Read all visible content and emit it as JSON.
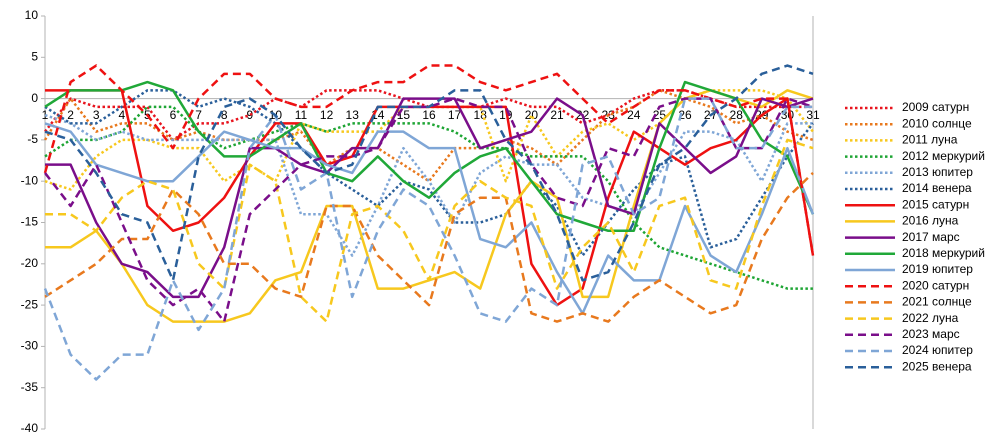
{
  "chart_data": {
    "type": "line",
    "categories": [
      "1",
      "2",
      "3",
      "4",
      "5",
      "6",
      "7",
      "8",
      "9",
      "10",
      "11",
      "12",
      "13",
      "14",
      "15",
      "16",
      "17",
      "18",
      "19",
      "20",
      "21",
      "22",
      "23",
      "24",
      "25",
      "26",
      "27",
      "28",
      "29",
      "30",
      "31"
    ],
    "ylim": [
      -40,
      10
    ],
    "yticks": [
      10,
      5,
      0,
      -5,
      -10,
      -15,
      -20,
      -25,
      -30,
      -35,
      -40
    ],
    "grid": false,
    "series": [
      {
        "name": "2009 сатурн",
        "color": "#e8141e",
        "style": "dotted",
        "values": [
          -4,
          0,
          -1,
          -1,
          -1,
          -5,
          -3,
          -3,
          -2,
          0,
          -1,
          1,
          1,
          1,
          0,
          -1,
          -1,
          -1,
          0,
          -1,
          -1,
          -3,
          -2,
          0,
          1,
          1,
          0,
          -1,
          -1,
          -1,
          -1
        ]
      },
      {
        "name": "2010 солнце",
        "color": "#e8791e",
        "style": "dotted",
        "values": [
          -5,
          0,
          -4,
          -3,
          -3,
          -5,
          -4,
          -5,
          -5,
          -5,
          -4,
          -8,
          -6,
          -6,
          -8,
          -10,
          -6,
          -6,
          -5,
          -6,
          -8,
          -5,
          -2,
          -1,
          1,
          0,
          -1,
          -3,
          -2,
          -4,
          -5
        ]
      },
      {
        "name": "2011 луна",
        "color": "#f7c81e",
        "style": "dotted",
        "values": [
          -10,
          -11,
          -7,
          -5,
          -5,
          -6,
          -6,
          -10,
          -8,
          -10,
          -3,
          -4,
          -4,
          -4,
          -1,
          -1,
          -1,
          -1,
          -10,
          -2,
          -7,
          -4,
          -3,
          -5,
          -3,
          0,
          1,
          1,
          1,
          0,
          -4
        ]
      },
      {
        "name": "2012 меркурий",
        "color": "#1ea534",
        "style": "dotted",
        "values": [
          -7,
          -5,
          -5,
          -4,
          -1,
          -1,
          -4,
          -6,
          -5,
          -4,
          -3,
          -4,
          -3,
          -3,
          -3,
          -3,
          -4,
          -6,
          -6,
          -7,
          -7,
          -7,
          -10,
          -15,
          -18,
          -19,
          -20,
          -21,
          -22,
          -23,
          -23
        ]
      },
      {
        "name": "2013 юпитер",
        "color": "#7fa6d6",
        "style": "dotted",
        "values": [
          -2,
          -3,
          -5,
          -4,
          -5,
          -5,
          -5,
          -5,
          -5,
          -5,
          -14,
          -14,
          -19,
          -13,
          -6,
          -10,
          -15,
          -9,
          -7,
          -8,
          -8,
          -12,
          -13,
          -14,
          -9,
          -4,
          -4,
          -5,
          -10,
          -3,
          -3
        ]
      },
      {
        "name": "2014 венера",
        "color": "#2a5f9a",
        "style": "dotted",
        "values": [
          -1,
          -3,
          -3,
          -1,
          1,
          1,
          -1,
          0,
          -1,
          -3,
          -6,
          -9,
          -11,
          -13,
          -10,
          -11,
          -15,
          -15,
          -14,
          -10,
          -13,
          -19,
          -15,
          -11,
          -8,
          -7,
          -18,
          -17,
          -12,
          -7,
          -3
        ]
      },
      {
        "name": "2015 сатурн",
        "color": "#ee1111",
        "style": "solid",
        "values": [
          1,
          1,
          1,
          1,
          -13,
          -16,
          -15,
          -12,
          -7,
          -3,
          -3,
          -8,
          -7,
          -1,
          -1,
          -1,
          -1,
          -1,
          -1,
          -20,
          -25,
          -23,
          -12,
          -4,
          -6,
          -8,
          -6,
          -5,
          -2,
          0,
          -19
        ]
      },
      {
        "name": "2016 луна",
        "color": "#f7c81e",
        "style": "solid",
        "values": [
          -18,
          -18,
          -16,
          -20,
          -25,
          -27,
          -27,
          -27,
          -26,
          -22,
          -21,
          -13,
          -13,
          -23,
          -23,
          -22,
          -21,
          -23,
          -14,
          -10,
          -12,
          -24,
          -24,
          -13,
          -3,
          0,
          1,
          0,
          -1,
          1,
          0
        ]
      },
      {
        "name": "2017 марс",
        "color": "#7a0e8a",
        "style": "solid",
        "values": [
          -8,
          -8,
          -15,
          -20,
          -21,
          -24,
          -24,
          -18,
          -6,
          -6,
          -8,
          -9,
          -6,
          -6,
          0,
          0,
          0,
          -6,
          -5,
          -4,
          0,
          -2,
          -13,
          -14,
          -3,
          -6,
          -9,
          -7,
          0,
          -1,
          0
        ]
      },
      {
        "name": "2018 меркурий",
        "color": "#20a838",
        "style": "solid",
        "values": [
          -1,
          1,
          1,
          1,
          2,
          1,
          -4,
          -7,
          -7,
          -5,
          -3,
          -9,
          -10,
          -7,
          -10,
          -12,
          -9,
          -7,
          -6,
          -10,
          -14,
          -15,
          -16,
          -16,
          -6,
          2,
          1,
          0,
          -5,
          -7,
          -14
        ]
      },
      {
        "name": "2019 юпитер",
        "color": "#7fa6d6",
        "style": "solid",
        "values": [
          -3,
          -4,
          -8,
          -9,
          -10,
          -10,
          -7,
          -4,
          -5,
          -6,
          -6,
          -8,
          -9,
          -4,
          -4,
          -6,
          -6,
          -17,
          -18,
          -15,
          -21,
          -26,
          -19,
          -22,
          -22,
          -13,
          -19,
          -21,
          -14,
          -6,
          -14
        ]
      },
      {
        "name": "2020 сатурн",
        "color": "#ee1111",
        "style": "dashed",
        "values": [
          -9,
          2,
          4,
          1,
          -2,
          -6,
          0,
          3,
          3,
          0,
          -1,
          -1,
          1,
          2,
          2,
          4,
          4,
          2,
          1,
          2,
          3,
          0,
          -3,
          -1,
          1,
          1,
          0,
          -1,
          0,
          0,
          -19
        ]
      },
      {
        "name": "2021 солнце",
        "color": "#e8791e",
        "style": "dashed",
        "values": [
          -24,
          -22,
          -20,
          -17,
          -17,
          -11,
          -14,
          -20,
          -20,
          -23,
          -24,
          -13,
          -13,
          -19,
          -22,
          -25,
          -14,
          -12,
          -12,
          -26,
          -27,
          -26,
          -27,
          -24,
          -22,
          -24,
          -26,
          -25,
          -17,
          -12,
          -9
        ]
      },
      {
        "name": "2022 луна",
        "color": "#f7c81e",
        "style": "dashed",
        "values": [
          -14,
          -14,
          -16,
          -12,
          -10,
          -11,
          -20,
          -23,
          -8,
          -10,
          -24,
          -27,
          -14,
          -13,
          -16,
          -22,
          -13,
          -10,
          -12,
          -13,
          -23,
          -18,
          -15,
          -21,
          -13,
          -12,
          -22,
          -23,
          -13,
          -5,
          -6
        ]
      },
      {
        "name": "2023 марс",
        "color": "#7a0e8a",
        "style": "dashed",
        "values": [
          -9,
          -13,
          -8,
          -15,
          -22,
          -25,
          -23,
          -27,
          -14,
          -11,
          -8,
          -7,
          -7,
          -6,
          -1,
          -1,
          0,
          -1,
          -1,
          -8,
          -12,
          -13,
          -6,
          -7,
          -1,
          0,
          0,
          -6,
          -6,
          0,
          -1
        ]
      },
      {
        "name": "2024 юпитер",
        "color": "#7fa6d6",
        "style": "dashed",
        "values": [
          -23,
          -31,
          -34,
          -31,
          -31,
          -22,
          -28,
          -23,
          -6,
          -2,
          -11,
          -9,
          -24,
          -16,
          -11,
          -13,
          -19,
          -26,
          -27,
          -23,
          -25,
          -8,
          -7,
          -14,
          -12,
          0,
          0,
          -6,
          -6,
          -1,
          -1
        ]
      },
      {
        "name": "2025 венера",
        "color": "#2a5f9a",
        "style": "dashed",
        "values": [
          -4,
          -5,
          -9,
          -14,
          -15,
          -22,
          -7,
          -1,
          0,
          -2,
          -6,
          -9,
          -8,
          -1,
          -1,
          -1,
          1,
          1,
          -5,
          -8,
          -14,
          -22,
          -21,
          -15,
          -8,
          -6,
          -2,
          0,
          3,
          4,
          3
        ]
      }
    ]
  }
}
